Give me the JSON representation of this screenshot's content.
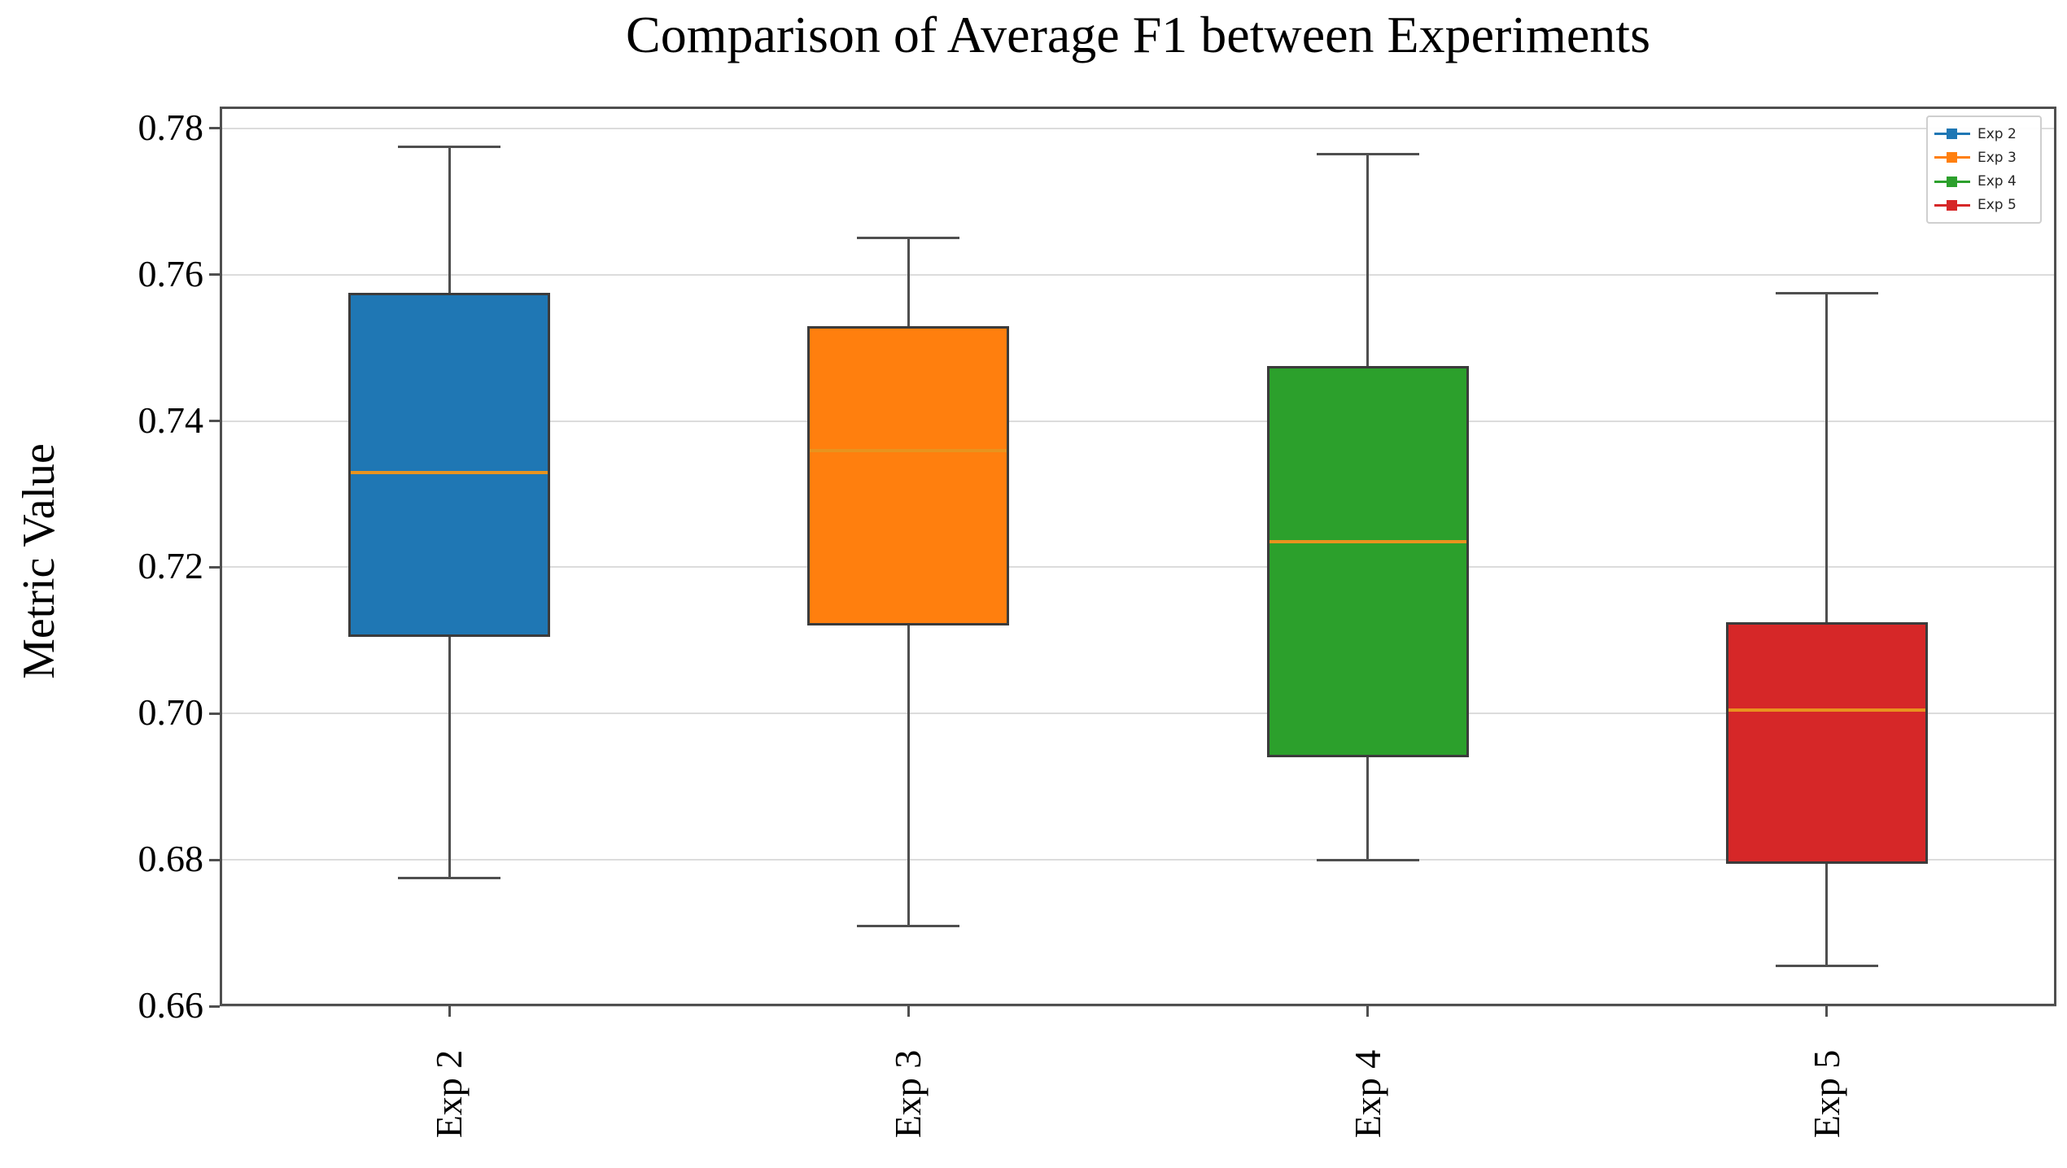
{
  "title": "Comparison of Average F1 between Experiments",
  "chart_data": {
    "type": "box",
    "title": "Comparison of Average F1 between Experiments",
    "ylabel": "Metric Value",
    "xlabel": "",
    "categories": [
      "Exp 2",
      "Exp 3",
      "Exp 4",
      "Exp 5"
    ],
    "series": [
      {
        "name": "Exp 2",
        "color": "#1f77b4",
        "whisker_low": 0.6775,
        "q1": 0.7105,
        "median": 0.733,
        "q3": 0.7575,
        "whisker_high": 0.7775
      },
      {
        "name": "Exp 3",
        "color": "#ff7f0e",
        "whisker_low": 0.671,
        "q1": 0.712,
        "median": 0.736,
        "q3": 0.753,
        "whisker_high": 0.765
      },
      {
        "name": "Exp 4",
        "color": "#2ca02c",
        "whisker_low": 0.68,
        "q1": 0.694,
        "median": 0.7235,
        "q3": 0.7475,
        "whisker_high": 0.7765
      },
      {
        "name": "Exp 5",
        "color": "#d62728",
        "whisker_low": 0.6655,
        "q1": 0.6795,
        "median": 0.7005,
        "q3": 0.7125,
        "whisker_high": 0.7575
      }
    ],
    "yticks": [
      0.66,
      0.68,
      0.7,
      0.72,
      0.74,
      0.76,
      0.78
    ],
    "ytick_labels": [
      "0.66",
      "0.68",
      "0.70",
      "0.72",
      "0.74",
      "0.76",
      "0.78"
    ],
    "ylim": [
      0.66,
      0.783
    ],
    "grid": true,
    "median_color": "#e8931e",
    "box_edge_color": "#3b3b3b",
    "whisker_color": "#4f4f4f",
    "legend_position": "upper right",
    "legend": [
      {
        "label": "Exp 2",
        "color": "#1f77b4"
      },
      {
        "label": "Exp 3",
        "color": "#ff7f0e"
      },
      {
        "label": "Exp 4",
        "color": "#2ca02c"
      },
      {
        "label": "Exp 5",
        "color": "#d62728"
      }
    ]
  }
}
